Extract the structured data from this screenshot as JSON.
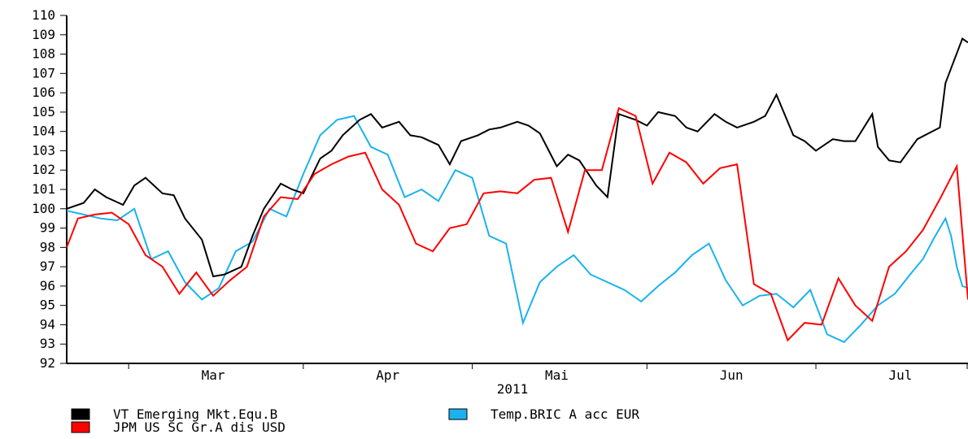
{
  "chart_data": {
    "type": "line",
    "title": "",
    "xlabel": "",
    "ylabel": "",
    "year_label": "2011",
    "ylim": [
      92,
      110
    ],
    "y_ticks": [
      92,
      93,
      94,
      95,
      96,
      97,
      98,
      99,
      100,
      101,
      102,
      103,
      104,
      105,
      106,
      107,
      108,
      109,
      110
    ],
    "x_domain": [
      "2011-02-18",
      "2011-07-28"
    ],
    "month_ticks": [
      "2011-03-01",
      "2011-04-01",
      "2011-05-01",
      "2011-06-01",
      "2011-07-01",
      "2011-08-01"
    ],
    "month_labels": [
      {
        "label": "Mar",
        "center": "2011-03-16"
      },
      {
        "label": "Apr",
        "center": "2011-04-16"
      },
      {
        "label": "Mai",
        "center": "2011-05-16"
      },
      {
        "label": "Jun",
        "center": "2011-06-16"
      },
      {
        "label": "Jul",
        "center": "2011-07-16"
      }
    ],
    "legend": {
      "placement": "bottom-left"
    },
    "grid": false,
    "series": [
      {
        "name": "VT Emerging Mkt.Equ.B",
        "color": "#000000",
        "points": [
          [
            "2011-02-18",
            100.0
          ],
          [
            "2011-02-21",
            100.3
          ],
          [
            "2011-02-23",
            101.0
          ],
          [
            "2011-02-25",
            100.6
          ],
          [
            "2011-02-28",
            100.2
          ],
          [
            "2011-03-02",
            101.2
          ],
          [
            "2011-03-04",
            101.6
          ],
          [
            "2011-03-07",
            100.8
          ],
          [
            "2011-03-09",
            100.7
          ],
          [
            "2011-03-11",
            99.5
          ],
          [
            "2011-03-14",
            98.4
          ],
          [
            "2011-03-16",
            96.5
          ],
          [
            "2011-03-18",
            96.6
          ],
          [
            "2011-03-21",
            97.0
          ],
          [
            "2011-03-23",
            98.6
          ],
          [
            "2011-03-25",
            100.0
          ],
          [
            "2011-03-28",
            101.3
          ],
          [
            "2011-03-30",
            101.0
          ],
          [
            "2011-04-01",
            100.8
          ],
          [
            "2011-04-04",
            102.6
          ],
          [
            "2011-04-06",
            103.0
          ],
          [
            "2011-04-08",
            103.8
          ],
          [
            "2011-04-11",
            104.6
          ],
          [
            "2011-04-13",
            104.9
          ],
          [
            "2011-04-15",
            104.2
          ],
          [
            "2011-04-18",
            104.5
          ],
          [
            "2011-04-20",
            103.8
          ],
          [
            "2011-04-22",
            103.7
          ],
          [
            "2011-04-25",
            103.3
          ],
          [
            "2011-04-27",
            102.3
          ],
          [
            "2011-04-29",
            103.5
          ],
          [
            "2011-05-02",
            103.8
          ],
          [
            "2011-05-04",
            104.1
          ],
          [
            "2011-05-06",
            104.2
          ],
          [
            "2011-05-09",
            104.5
          ],
          [
            "2011-05-11",
            104.3
          ],
          [
            "2011-05-13",
            103.9
          ],
          [
            "2011-05-16",
            102.2
          ],
          [
            "2011-05-18",
            102.8
          ],
          [
            "2011-05-20",
            102.5
          ],
          [
            "2011-05-23",
            101.2
          ],
          [
            "2011-05-25",
            100.6
          ],
          [
            "2011-05-27",
            104.9
          ],
          [
            "2011-05-30",
            104.6
          ],
          [
            "2011-06-01",
            104.3
          ],
          [
            "2011-06-03",
            105.0
          ],
          [
            "2011-06-06",
            104.8
          ],
          [
            "2011-06-08",
            104.2
          ],
          [
            "2011-06-10",
            104.0
          ],
          [
            "2011-06-13",
            104.9
          ],
          [
            "2011-06-15",
            104.5
          ],
          [
            "2011-06-17",
            104.2
          ],
          [
            "2011-06-20",
            104.5
          ],
          [
            "2011-06-22",
            104.8
          ],
          [
            "2011-06-24",
            105.9
          ],
          [
            "2011-06-27",
            103.8
          ],
          [
            "2011-06-29",
            103.5
          ],
          [
            "2011-07-01",
            103.0
          ],
          [
            "2011-07-04",
            103.6
          ],
          [
            "2011-07-06",
            103.5
          ],
          [
            "2011-07-08",
            103.5
          ],
          [
            "2011-07-11",
            104.9
          ],
          [
            "2011-07-12",
            103.2
          ],
          [
            "2011-07-14",
            102.5
          ],
          [
            "2011-07-16",
            102.4
          ],
          [
            "2011-07-19",
            103.6
          ],
          [
            "2011-07-21",
            103.9
          ],
          [
            "2011-07-23",
            104.2
          ],
          [
            "2011-07-24",
            106.5
          ],
          [
            "2011-07-27",
            108.8
          ],
          [
            "2011-07-28",
            108.6
          ]
        ]
      },
      {
        "name": "Temp.BRIC A acc EUR",
        "color": "#1ab2ee",
        "points": [
          [
            "2011-02-18",
            99.9
          ],
          [
            "2011-02-21",
            99.7
          ],
          [
            "2011-02-24",
            99.5
          ],
          [
            "2011-02-27",
            99.4
          ],
          [
            "2011-03-02",
            100.0
          ],
          [
            "2011-03-05",
            97.4
          ],
          [
            "2011-03-08",
            97.8
          ],
          [
            "2011-03-11",
            96.2
          ],
          [
            "2011-03-14",
            95.3
          ],
          [
            "2011-03-17",
            95.9
          ],
          [
            "2011-03-20",
            97.8
          ],
          [
            "2011-03-23",
            98.3
          ],
          [
            "2011-03-26",
            100.0
          ],
          [
            "2011-03-29",
            99.6
          ],
          [
            "2011-04-01",
            101.8
          ],
          [
            "2011-04-04",
            103.8
          ],
          [
            "2011-04-07",
            104.6
          ],
          [
            "2011-04-10",
            104.8
          ],
          [
            "2011-04-13",
            103.2
          ],
          [
            "2011-04-16",
            102.8
          ],
          [
            "2011-04-19",
            100.6
          ],
          [
            "2011-04-22",
            101.0
          ],
          [
            "2011-04-25",
            100.4
          ],
          [
            "2011-04-28",
            102.0
          ],
          [
            "2011-05-01",
            101.6
          ],
          [
            "2011-05-04",
            98.6
          ],
          [
            "2011-05-07",
            98.2
          ],
          [
            "2011-05-10",
            94.1
          ],
          [
            "2011-05-13",
            96.2
          ],
          [
            "2011-05-16",
            97.0
          ],
          [
            "2011-05-19",
            97.6
          ],
          [
            "2011-05-22",
            96.6
          ],
          [
            "2011-05-25",
            96.2
          ],
          [
            "2011-05-28",
            95.8
          ],
          [
            "2011-05-31",
            95.2
          ],
          [
            "2011-06-03",
            96.0
          ],
          [
            "2011-06-06",
            96.7
          ],
          [
            "2011-06-09",
            97.6
          ],
          [
            "2011-06-12",
            98.2
          ],
          [
            "2011-06-15",
            96.3
          ],
          [
            "2011-06-18",
            95.0
          ],
          [
            "2011-06-21",
            95.5
          ],
          [
            "2011-06-24",
            95.6
          ],
          [
            "2011-06-27",
            94.9
          ],
          [
            "2011-06-30",
            95.8
          ],
          [
            "2011-07-03",
            93.5
          ],
          [
            "2011-07-06",
            93.1
          ],
          [
            "2011-07-09",
            94.0
          ],
          [
            "2011-07-12",
            95.0
          ],
          [
            "2011-07-15",
            95.6
          ],
          [
            "2011-07-18",
            96.7
          ],
          [
            "2011-07-20",
            97.4
          ],
          [
            "2011-07-22",
            98.5
          ],
          [
            "2011-07-24",
            99.5
          ],
          [
            "2011-07-25",
            98.6
          ],
          [
            "2011-07-26",
            97.0
          ],
          [
            "2011-07-27",
            96.0
          ],
          [
            "2011-07-28",
            95.9
          ]
        ]
      },
      {
        "name": "JPM US SC Gr.A dis USD",
        "color": "#ff0000",
        "points": [
          [
            "2011-02-18",
            98.0
          ],
          [
            "2011-02-20",
            99.5
          ],
          [
            "2011-02-23",
            99.7
          ],
          [
            "2011-02-26",
            99.8
          ],
          [
            "2011-03-01",
            99.2
          ],
          [
            "2011-03-04",
            97.6
          ],
          [
            "2011-03-07",
            97.0
          ],
          [
            "2011-03-10",
            95.6
          ],
          [
            "2011-03-13",
            96.7
          ],
          [
            "2011-03-16",
            95.5
          ],
          [
            "2011-03-19",
            96.3
          ],
          [
            "2011-03-22",
            97.0
          ],
          [
            "2011-03-25",
            99.6
          ],
          [
            "2011-03-28",
            100.6
          ],
          [
            "2011-03-31",
            100.5
          ],
          [
            "2011-04-03",
            101.8
          ],
          [
            "2011-04-06",
            102.3
          ],
          [
            "2011-04-09",
            102.7
          ],
          [
            "2011-04-12",
            102.9
          ],
          [
            "2011-04-15",
            101.0
          ],
          [
            "2011-04-18",
            100.2
          ],
          [
            "2011-04-21",
            98.2
          ],
          [
            "2011-04-24",
            97.8
          ],
          [
            "2011-04-27",
            99.0
          ],
          [
            "2011-04-30",
            99.2
          ],
          [
            "2011-05-03",
            100.8
          ],
          [
            "2011-05-06",
            100.9
          ],
          [
            "2011-05-09",
            100.8
          ],
          [
            "2011-05-12",
            101.5
          ],
          [
            "2011-05-15",
            101.6
          ],
          [
            "2011-05-18",
            98.8
          ],
          [
            "2011-05-21",
            102.0
          ],
          [
            "2011-05-24",
            102.0
          ],
          [
            "2011-05-27",
            105.2
          ],
          [
            "2011-05-30",
            104.8
          ],
          [
            "2011-06-02",
            101.3
          ],
          [
            "2011-06-05",
            102.9
          ],
          [
            "2011-06-08",
            102.4
          ],
          [
            "2011-06-11",
            101.3
          ],
          [
            "2011-06-14",
            102.1
          ],
          [
            "2011-06-17",
            102.3
          ],
          [
            "2011-06-20",
            96.1
          ],
          [
            "2011-06-23",
            95.6
          ],
          [
            "2011-06-26",
            93.2
          ],
          [
            "2011-06-29",
            94.1
          ],
          [
            "2011-07-02",
            94.0
          ],
          [
            "2011-07-05",
            96.4
          ],
          [
            "2011-07-08",
            95.0
          ],
          [
            "2011-07-11",
            94.2
          ],
          [
            "2011-07-14",
            97.0
          ],
          [
            "2011-07-17",
            97.8
          ],
          [
            "2011-07-20",
            98.9
          ],
          [
            "2011-07-23",
            100.5
          ],
          [
            "2011-07-26",
            102.2
          ],
          [
            "2011-07-28",
            95.3
          ]
        ]
      }
    ]
  }
}
